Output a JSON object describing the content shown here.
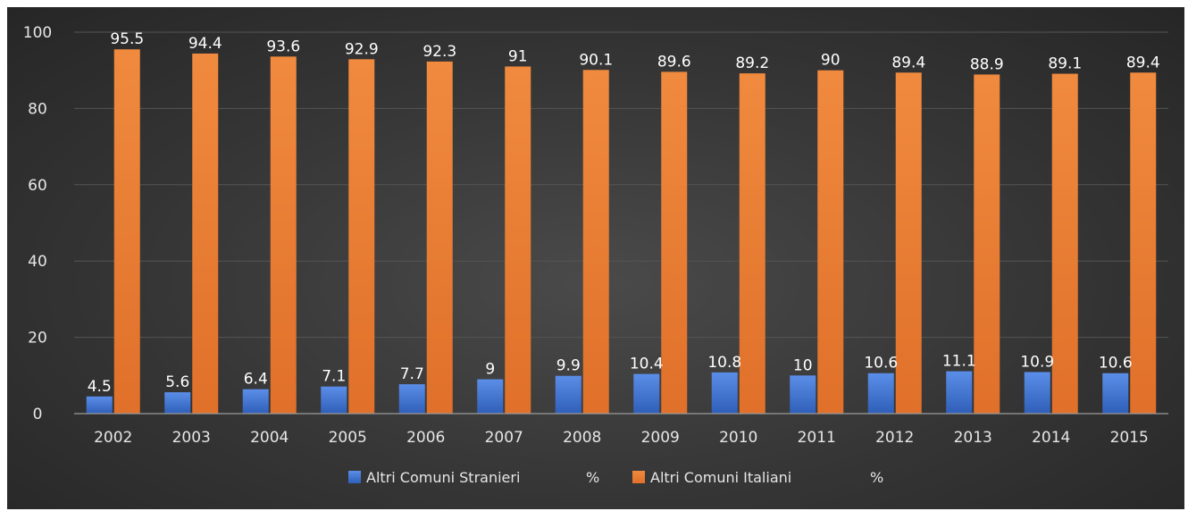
{
  "chart_data": {
    "type": "bar",
    "title": "",
    "xlabel": "",
    "ylabel": "",
    "ylim": [
      0,
      100
    ],
    "yticks": [
      0,
      20,
      40,
      60,
      80,
      100
    ],
    "grid": true,
    "legend": "bottom",
    "categories": [
      "2002",
      "2003",
      "2004",
      "2005",
      "2006",
      "2007",
      "2008",
      "2009",
      "2010",
      "2011",
      "2012",
      "2013",
      "2014",
      "2015"
    ],
    "series": [
      {
        "name": "Altri Comuni Stranieri",
        "unit": "%",
        "color": "#4472c4",
        "values": [
          4.5,
          5.6,
          6.4,
          7.1,
          7.7,
          9,
          9.9,
          10.4,
          10.8,
          10,
          10.6,
          11.1,
          10.9,
          10.6
        ]
      },
      {
        "name": "Altri Comuni Italiani",
        "unit": "%",
        "color": "#ed7d31",
        "values": [
          95.5,
          94.4,
          93.6,
          92.9,
          92.3,
          91,
          90.1,
          89.6,
          89.2,
          90,
          89.4,
          88.9,
          89.1,
          89.4
        ]
      }
    ]
  }
}
